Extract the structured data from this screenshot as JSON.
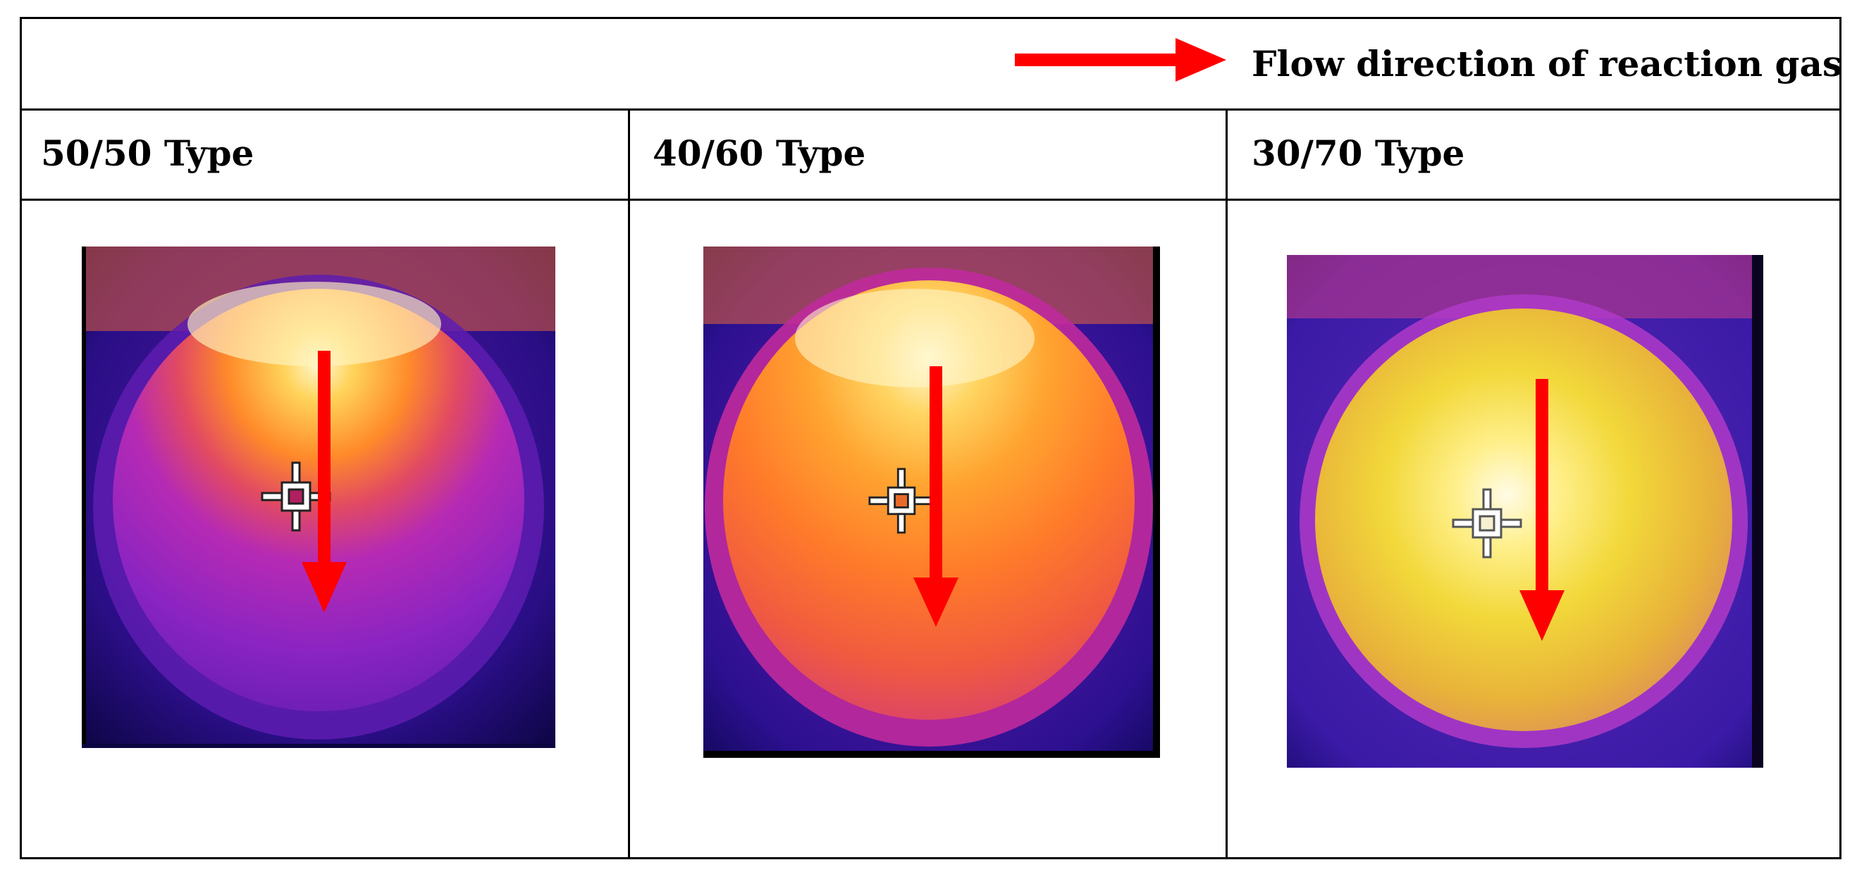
{
  "legend": {
    "label": "Flow direction of reaction gas",
    "arrow_color": "#ff0000"
  },
  "columns": [
    {
      "title": "50/50 Type",
      "image": "thermal-image"
    },
    {
      "title": "40/60 Type",
      "image": "thermal-image"
    },
    {
      "title": "30/70 Type",
      "image": "thermal-image"
    }
  ],
  "colors": {
    "arrow": "#ff0000",
    "hot": "#fff6c8",
    "warm": "#ff9a1e",
    "mid": "#c2189a",
    "cool": "#3b1b9a",
    "cold": "#0e0648"
  }
}
